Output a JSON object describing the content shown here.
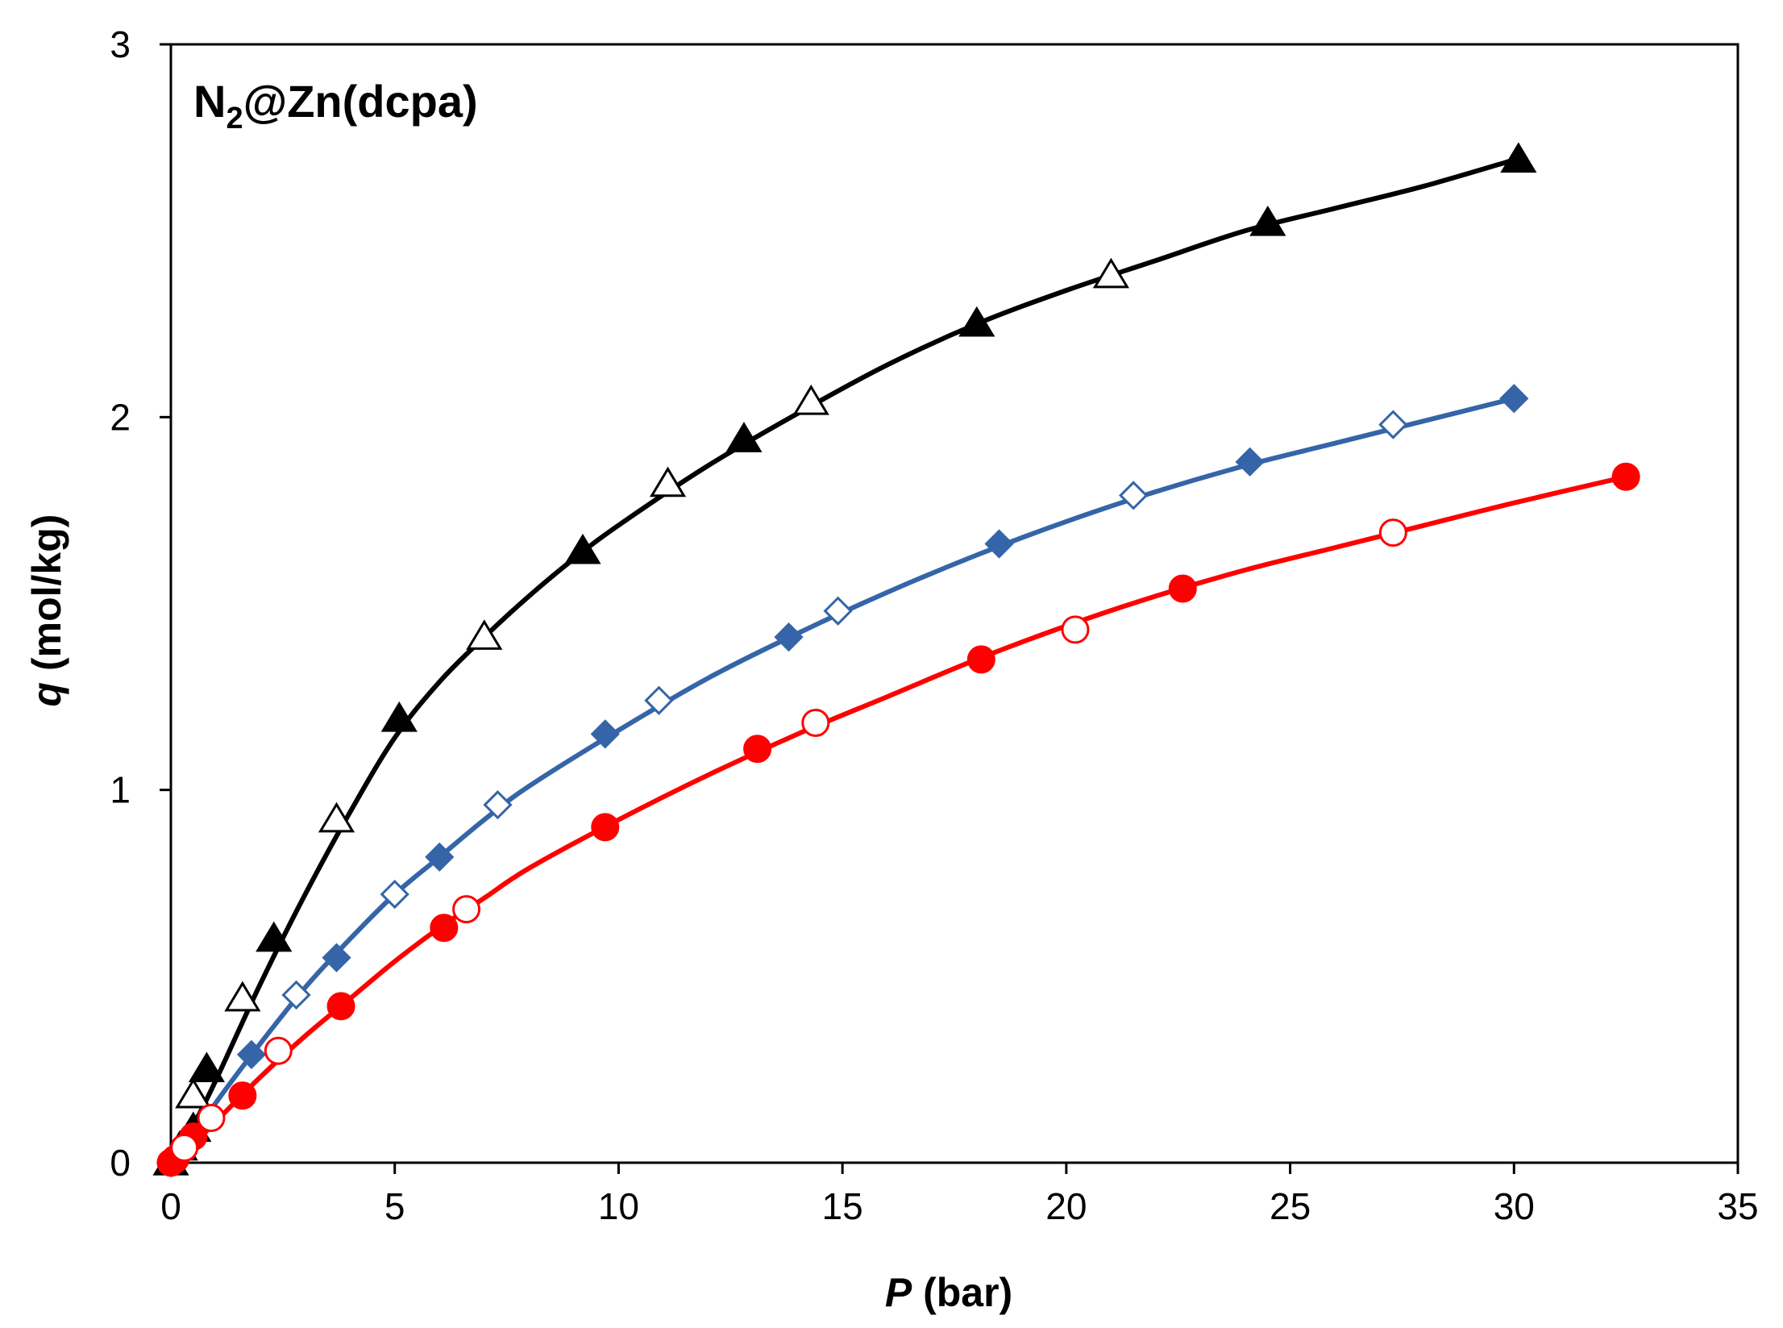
{
  "chart_data": {
    "type": "scatter",
    "title_main": "N",
    "title_sub": "2",
    "title_rest": "@Zn(dcpa)",
    "xlabel_italic": "P",
    "xlabel_rest": " (bar)",
    "ylabel_italic": "q",
    "ylabel_rest": " (mol/kg)",
    "xlim": [
      0,
      35
    ],
    "ylim": [
      0,
      3
    ],
    "xticks": [
      0,
      5,
      10,
      15,
      20,
      25,
      30,
      35
    ],
    "yticks": [
      0,
      1,
      2,
      3
    ],
    "xtick_labels": [
      "0",
      "5",
      "10",
      "15",
      "20",
      "25",
      "30",
      "35"
    ],
    "ytick_labels": [
      "0",
      "1",
      "2",
      "3"
    ],
    "grid": false,
    "series": [
      {
        "name": "black-triangles",
        "color": "#000000",
        "marker": "triangle",
        "curve": [
          [
            0,
            0
          ],
          [
            0.5,
            0.1
          ],
          [
            1,
            0.22
          ],
          [
            2,
            0.48
          ],
          [
            3,
            0.72
          ],
          [
            4,
            0.94
          ],
          [
            5,
            1.14
          ],
          [
            6,
            1.29
          ],
          [
            7,
            1.41
          ],
          [
            8,
            1.52
          ],
          [
            9,
            1.62
          ],
          [
            10,
            1.71
          ],
          [
            12,
            1.87
          ],
          [
            14,
            2.01
          ],
          [
            16,
            2.14
          ],
          [
            18,
            2.25
          ],
          [
            20,
            2.34
          ],
          [
            22,
            2.42
          ],
          [
            24,
            2.5
          ],
          [
            26,
            2.56
          ],
          [
            28,
            2.62
          ],
          [
            30,
            2.69
          ]
        ],
        "points_filled": [
          [
            0,
            0
          ],
          [
            0.2,
            0.04
          ],
          [
            0.5,
            0.09
          ],
          [
            0.8,
            0.25
          ],
          [
            2.3,
            0.6
          ],
          [
            5.1,
            1.19
          ],
          [
            9.2,
            1.64
          ],
          [
            12.8,
            1.94
          ],
          [
            18.0,
            2.25
          ],
          [
            24.5,
            2.52
          ],
          [
            30.1,
            2.69
          ]
        ],
        "points_open": [
          [
            0.5,
            0.18
          ],
          [
            1.6,
            0.44
          ],
          [
            3.7,
            0.92
          ],
          [
            7.0,
            1.41
          ],
          [
            11.1,
            1.82
          ],
          [
            14.3,
            2.04
          ],
          [
            21.0,
            2.38
          ]
        ]
      },
      {
        "name": "blue-diamonds",
        "color": "#3565a8",
        "marker": "diamond",
        "curve": [
          [
            0,
            0
          ],
          [
            0.5,
            0.07
          ],
          [
            1,
            0.16
          ],
          [
            2,
            0.32
          ],
          [
            3,
            0.47
          ],
          [
            4,
            0.6
          ],
          [
            5,
            0.72
          ],
          [
            6,
            0.82
          ],
          [
            7,
            0.92
          ],
          [
            8,
            1.01
          ],
          [
            10,
            1.16
          ],
          [
            12,
            1.3
          ],
          [
            14,
            1.42
          ],
          [
            16,
            1.53
          ],
          [
            18,
            1.63
          ],
          [
            20,
            1.72
          ],
          [
            22,
            1.8
          ],
          [
            24,
            1.87
          ],
          [
            26,
            1.93
          ],
          [
            28,
            1.99
          ],
          [
            30,
            2.05
          ]
        ],
        "points_filled": [
          [
            0,
            0
          ],
          [
            0.3,
            0.04
          ],
          [
            1.8,
            0.29
          ],
          [
            3.7,
            0.55
          ],
          [
            6.0,
            0.82
          ],
          [
            9.7,
            1.15
          ],
          [
            13.8,
            1.41
          ],
          [
            18.5,
            1.66
          ],
          [
            24.1,
            1.88
          ],
          [
            30.0,
            2.05
          ]
        ],
        "points_open": [
          [
            2.8,
            0.45
          ],
          [
            5.0,
            0.72
          ],
          [
            7.3,
            0.96
          ],
          [
            10.9,
            1.24
          ],
          [
            14.9,
            1.48
          ],
          [
            21.5,
            1.79
          ],
          [
            27.3,
            1.98
          ]
        ]
      },
      {
        "name": "red-circles",
        "color": "#ff0000",
        "marker": "circle",
        "curve": [
          [
            0,
            0
          ],
          [
            0.5,
            0.05
          ],
          [
            1,
            0.11
          ],
          [
            2,
            0.23
          ],
          [
            3,
            0.34
          ],
          [
            4,
            0.44
          ],
          [
            5,
            0.54
          ],
          [
            6,
            0.63
          ],
          [
            7,
            0.71
          ],
          [
            8,
            0.79
          ],
          [
            10,
            0.92
          ],
          [
            12,
            1.04
          ],
          [
            14,
            1.15
          ],
          [
            16,
            1.25
          ],
          [
            18,
            1.35
          ],
          [
            20,
            1.44
          ],
          [
            22,
            1.52
          ],
          [
            24,
            1.59
          ],
          [
            26,
            1.65
          ],
          [
            28,
            1.71
          ],
          [
            30,
            1.77
          ],
          [
            32.5,
            1.84
          ]
        ],
        "points_filled": [
          [
            0,
            0
          ],
          [
            0.1,
            0.01
          ],
          [
            0.5,
            0.07
          ],
          [
            1.6,
            0.18
          ],
          [
            3.8,
            0.42
          ],
          [
            6.1,
            0.63
          ],
          [
            9.7,
            0.9
          ],
          [
            13.1,
            1.11
          ],
          [
            18.1,
            1.35
          ],
          [
            22.6,
            1.54
          ],
          [
            32.5,
            1.84
          ]
        ],
        "points_open": [
          [
            0.3,
            0.04
          ],
          [
            0.9,
            0.12
          ],
          [
            2.4,
            0.3
          ],
          [
            6.6,
            0.68
          ],
          [
            14.4,
            1.18
          ],
          [
            20.2,
            1.43
          ],
          [
            27.3,
            1.69
          ]
        ]
      }
    ]
  }
}
